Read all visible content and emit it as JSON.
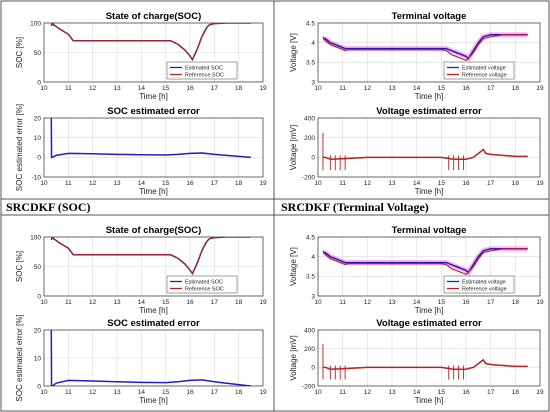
{
  "panel_captions": [
    "SRCDKF (SOC)",
    "SRCDKF (Terminal Voltage)"
  ],
  "colors": {
    "estimated": "#1f1fbf",
    "reference": "#b22222",
    "band": "#ff55dd",
    "grid": "#dcdcdc",
    "border": "#555555"
  },
  "chart_data": [
    {
      "type": "line",
      "title": "State of charge(SOC)",
      "xlabel": "Time [h]",
      "ylabel": "SOC [%]",
      "xlim": [
        10,
        19
      ],
      "ylim": [
        0,
        100
      ],
      "xticks": [
        10,
        11,
        12,
        13,
        14,
        15,
        16,
        17,
        18,
        19
      ],
      "yticks": [
        0,
        50,
        100
      ],
      "grid": true,
      "legend": "bottom-right",
      "series": [
        {
          "name": "Estimated SOC",
          "role": "estimated",
          "x": [
            10.3,
            10.35,
            10.4,
            10.5,
            10.6,
            10.8,
            11.0,
            11.2,
            12,
            13,
            14,
            15,
            15.2,
            15.5,
            15.8,
            16.0,
            16.1,
            16.3,
            16.5,
            16.7,
            16.8,
            17,
            17.5,
            18,
            18.5
          ],
          "y": [
            95,
            99,
            97,
            94,
            91,
            86,
            81,
            70,
            70,
            70,
            70,
            70,
            70,
            64,
            54,
            44,
            38,
            56,
            78,
            93,
            97,
            99,
            100,
            100,
            100
          ]
        },
        {
          "name": "Reference SOC",
          "role": "reference",
          "x": [
            10.3,
            10.4,
            10.5,
            10.6,
            10.8,
            11.0,
            11.2,
            12,
            13,
            14,
            15,
            15.2,
            15.5,
            15.8,
            16.0,
            16.1,
            16.3,
            16.5,
            16.7,
            16.8,
            17,
            17.5,
            18,
            18.5
          ],
          "y": [
            99,
            97,
            94,
            91,
            86,
            81,
            70,
            70,
            70,
            70,
            70,
            70,
            64,
            54,
            44,
            38,
            56,
            78,
            93,
            97,
            99,
            100,
            100,
            100
          ]
        }
      ]
    },
    {
      "type": "line",
      "title": "Terminal voltage",
      "xlabel": "Time [h]",
      "ylabel": "Voltage [V]",
      "xlim": [
        10,
        19
      ],
      "ylim": [
        3,
        4.5
      ],
      "xticks": [
        10,
        11,
        12,
        13,
        14,
        15,
        16,
        17,
        18,
        19
      ],
      "yticks": [
        3,
        3.5,
        4,
        4.5
      ],
      "grid": true,
      "legend": "bottom-right",
      "series": [
        {
          "name": "Estimated voltage",
          "role": "estimated",
          "x": [
            10.2,
            10.3,
            10.5,
            10.7,
            10.9,
            11.1,
            11.2,
            12,
            13,
            14,
            15,
            15.2,
            15.4,
            15.6,
            15.8,
            16.0,
            16.1,
            16.3,
            16.5,
            16.7,
            17,
            17.5,
            18,
            18.5
          ],
          "y": [
            4.1,
            4.1,
            4.0,
            3.95,
            3.9,
            3.85,
            3.85,
            3.85,
            3.85,
            3.85,
            3.85,
            3.85,
            3.8,
            3.75,
            3.7,
            3.65,
            3.6,
            3.8,
            4.0,
            4.15,
            4.2,
            4.2,
            4.2,
            4.2
          ]
        },
        {
          "name": "Reference voltage",
          "role": "reference",
          "x": [
            10.2,
            10.3,
            10.5,
            10.7,
            10.9,
            11.1,
            11.2,
            12,
            13,
            14,
            15,
            15.2,
            15.4,
            15.6,
            15.8,
            16.0,
            16.1,
            16.3,
            16.5,
            16.7,
            17,
            17.5,
            18,
            18.5
          ],
          "y": [
            4.15,
            4.05,
            3.95,
            3.9,
            3.85,
            3.8,
            3.82,
            3.82,
            3.82,
            3.82,
            3.82,
            3.8,
            3.7,
            3.65,
            3.6,
            3.55,
            3.6,
            3.75,
            3.95,
            4.1,
            4.15,
            4.2,
            4.2,
            4.2
          ]
        }
      ]
    },
    {
      "type": "line",
      "title": "SOC estimated error",
      "xlabel": "Time [h]",
      "ylabel": "SOC estimated error [%]",
      "xlim": [
        10,
        19
      ],
      "ylim": [
        -10,
        20
      ],
      "xticks": [
        10,
        11,
        12,
        13,
        14,
        15,
        16,
        17,
        18,
        19
      ],
      "yticks": [
        -10,
        0,
        10,
        20
      ],
      "grid": true,
      "series": [
        {
          "name": "SOC estimated error",
          "x": [
            10.3,
            10.31,
            10.35,
            10.5,
            11,
            12,
            13,
            14,
            15,
            15.5,
            16,
            16.5,
            17,
            17.5,
            18,
            18.5
          ],
          "y": [
            20,
            0,
            0,
            1,
            2,
            1.8,
            1.5,
            1.3,
            1.2,
            1.5,
            2,
            2.2,
            1.5,
            1,
            0.5,
            0
          ]
        }
      ]
    },
    {
      "type": "line",
      "title": "Voltage estimated error",
      "xlabel": "Time [h]",
      "ylabel": "Voltage [mV]",
      "xlim": [
        10,
        19
      ],
      "ylim": [
        -200,
        400
      ],
      "xticks": [
        10,
        11,
        12,
        13,
        14,
        15,
        16,
        17,
        18,
        19
      ],
      "yticks": [
        -200,
        0,
        200,
        400
      ],
      "grid": true,
      "series": [
        {
          "name": "Voltage estimated error",
          "x": [
            10.2,
            10.3,
            10.5,
            11,
            12,
            13,
            14,
            15,
            15.5,
            16,
            16.3,
            16.5,
            16.6,
            16.7,
            16.8,
            17,
            17.5,
            18,
            18.5
          ],
          "y": [
            0,
            0,
            -20,
            -15,
            0,
            0,
            0,
            0,
            -20,
            -20,
            0,
            40,
            60,
            80,
            40,
            30,
            20,
            10,
            10
          ]
        }
      ],
      "spikes": [
        10.2,
        10.5,
        10.7,
        10.9,
        11.1,
        15.3,
        15.5,
        15.7,
        15.9
      ]
    },
    {
      "type": "line",
      "title": "State of charge(SOC)",
      "xlabel": "Time [h]",
      "ylabel": "SOC [%]",
      "xlim": [
        10,
        19
      ],
      "ylim": [
        0,
        100
      ],
      "xticks": [
        10,
        11,
        12,
        13,
        14,
        15,
        16,
        17,
        18,
        19
      ],
      "yticks": [
        0,
        50,
        100
      ],
      "grid": true,
      "legend": "bottom-right",
      "series": [
        {
          "name": "Estimated SOC",
          "role": "estimated",
          "x": [
            10.3,
            10.35,
            10.4,
            10.5,
            10.6,
            10.8,
            11.0,
            11.2,
            12,
            13,
            14,
            15,
            15.2,
            15.5,
            15.8,
            16.0,
            16.1,
            16.3,
            16.5,
            16.7,
            16.8,
            17,
            17.5,
            18,
            18.5
          ],
          "y": [
            95,
            99,
            97,
            94,
            91,
            86,
            81,
            70,
            70,
            70,
            70,
            70,
            70,
            64,
            54,
            44,
            38,
            56,
            78,
            93,
            97,
            99,
            100,
            100,
            100
          ]
        },
        {
          "name": "Reference SOC",
          "role": "reference",
          "x": [
            10.3,
            10.4,
            10.5,
            10.6,
            10.8,
            11.0,
            11.2,
            12,
            13,
            14,
            15,
            15.2,
            15.5,
            15.8,
            16.0,
            16.1,
            16.3,
            16.5,
            16.7,
            16.8,
            17,
            17.5,
            18,
            18.5
          ],
          "y": [
            99,
            97,
            94,
            91,
            86,
            81,
            70,
            70,
            70,
            70,
            70,
            70,
            64,
            54,
            44,
            38,
            56,
            78,
            93,
            97,
            99,
            100,
            100,
            100
          ]
        }
      ]
    },
    {
      "type": "line",
      "title": "Terminal voltage",
      "xlabel": "Time [h]",
      "ylabel": "Voltage [V]",
      "xlim": [
        10,
        19
      ],
      "ylim": [
        3,
        4.5
      ],
      "xticks": [
        10,
        11,
        12,
        13,
        14,
        15,
        16,
        17,
        18,
        19
      ],
      "yticks": [
        3,
        3.5,
        4,
        4.5
      ],
      "grid": true,
      "legend": "bottom-right",
      "series": [
        {
          "name": "Estimated voltage",
          "role": "estimated",
          "x": [
            10.2,
            10.3,
            10.5,
            10.7,
            10.9,
            11.1,
            11.2,
            12,
            13,
            14,
            15,
            15.2,
            15.4,
            15.6,
            15.8,
            16.0,
            16.1,
            16.3,
            16.5,
            16.7,
            17,
            17.5,
            18,
            18.5
          ],
          "y": [
            4.1,
            4.1,
            4.0,
            3.95,
            3.9,
            3.85,
            3.85,
            3.85,
            3.85,
            3.85,
            3.85,
            3.85,
            3.8,
            3.75,
            3.7,
            3.65,
            3.6,
            3.8,
            4.0,
            4.15,
            4.2,
            4.2,
            4.2,
            4.2
          ]
        },
        {
          "name": "Reference voltage",
          "role": "reference",
          "x": [
            10.2,
            10.3,
            10.5,
            10.7,
            10.9,
            11.1,
            11.2,
            12,
            13,
            14,
            15,
            15.2,
            15.4,
            15.6,
            15.8,
            16.0,
            16.1,
            16.3,
            16.5,
            16.7,
            17,
            17.5,
            18,
            18.5
          ],
          "y": [
            4.15,
            4.05,
            3.95,
            3.9,
            3.85,
            3.8,
            3.82,
            3.82,
            3.82,
            3.82,
            3.82,
            3.8,
            3.7,
            3.65,
            3.6,
            3.55,
            3.6,
            3.75,
            3.95,
            4.1,
            4.15,
            4.2,
            4.2,
            4.2
          ]
        }
      ]
    },
    {
      "type": "line",
      "title": "SOC estimated error",
      "xlabel": "Time [h]",
      "ylabel": "SOC estimated error [%]",
      "xlim": [
        10,
        19
      ],
      "ylim": [
        0,
        20
      ],
      "xticks": [
        10,
        11,
        12,
        13,
        14,
        15,
        16,
        17,
        18,
        19
      ],
      "yticks": [
        0,
        10,
        20
      ],
      "grid": true,
      "series": [
        {
          "name": "SOC estimated error",
          "x": [
            10.3,
            10.31,
            10.35,
            10.5,
            11,
            12,
            13,
            14,
            15,
            15.5,
            16,
            16.5,
            17,
            17.5,
            18,
            18.5
          ],
          "y": [
            20,
            0,
            0,
            1,
            2,
            1.8,
            1.5,
            1.3,
            1.2,
            1.5,
            2,
            2.2,
            1.5,
            1,
            0.5,
            0
          ]
        }
      ]
    },
    {
      "type": "line",
      "title": "Voltage estimated error",
      "xlabel": "Time [h]",
      "ylabel": "Voltage [mV]",
      "xlim": [
        10,
        19
      ],
      "ylim": [
        -200,
        400
      ],
      "xticks": [
        10,
        11,
        12,
        13,
        14,
        15,
        16,
        17,
        18,
        19
      ],
      "yticks": [
        -200,
        0,
        200,
        400
      ],
      "grid": true,
      "series": [
        {
          "name": "Voltage estimated error",
          "x": [
            10.2,
            10.3,
            10.5,
            11,
            12,
            13,
            14,
            15,
            15.5,
            16,
            16.3,
            16.5,
            16.6,
            16.7,
            16.8,
            17,
            17.5,
            18,
            18.5
          ],
          "y": [
            0,
            0,
            -20,
            -15,
            0,
            0,
            0,
            0,
            -20,
            -20,
            0,
            40,
            60,
            80,
            40,
            30,
            20,
            10,
            10
          ]
        }
      ],
      "spikes": [
        10.2,
        10.5,
        10.7,
        10.9,
        11.1,
        15.3,
        15.5,
        15.7,
        15.9
      ]
    }
  ]
}
